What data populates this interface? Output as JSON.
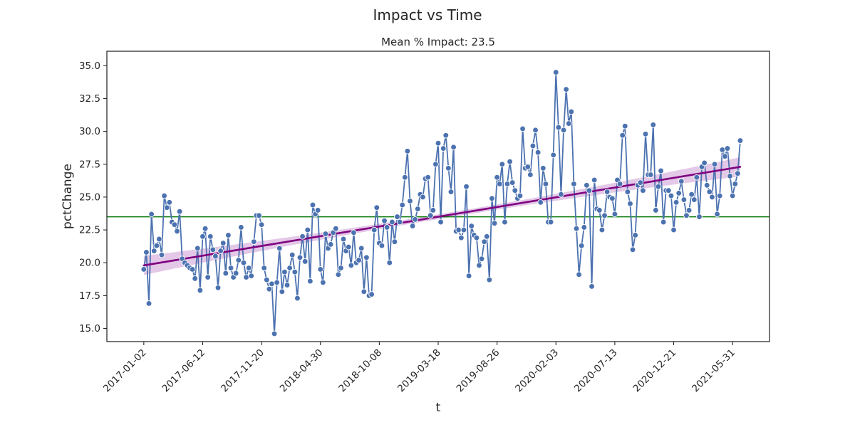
{
  "chart_data": {
    "type": "line",
    "title": "Impact vs Time",
    "subtitle": "Mean % Impact: 23.5",
    "xlabel": "t",
    "ylabel": "pctChange",
    "x_ticks": [
      "2017-01-02",
      "2017-06-12",
      "2017-11-20",
      "2018-04-30",
      "2018-10-08",
      "2019-03-18",
      "2019-08-26",
      "2020-02-03",
      "2020-07-13",
      "2020-12-21",
      "2021-05-31"
    ],
    "y_ticks": [
      "15.0",
      "17.5",
      "20.0",
      "22.5",
      "25.0",
      "27.5",
      "30.0",
      "32.5",
      "35.0"
    ],
    "xlim": [
      "2016-09-23",
      "2021-09-09"
    ],
    "ylim": [
      14.0,
      36.1
    ],
    "mean_line": 23.5,
    "trend": {
      "start": [
        "2017-01-02",
        19.8
      ],
      "end": [
        "2021-06-21",
        27.3
      ]
    },
    "series": [
      {
        "start_date": "2017-01-02",
        "interval_days": 7,
        "values": [
          19.5,
          20.8,
          16.9,
          23.7,
          20.9,
          21.3,
          21.8,
          20.6,
          25.1,
          24.2,
          24.6,
          23.1,
          22.9,
          22.4,
          23.9,
          20.3,
          20.0,
          19.8,
          19.6,
          19.5,
          18.8,
          21.1,
          17.9,
          22.0,
          22.6,
          18.9,
          22.0,
          21.0,
          20.5,
          18.1,
          20.9,
          21.5,
          19.2,
          22.1,
          19.6,
          18.9,
          19.2,
          20.2,
          22.7,
          20.0,
          18.9,
          19.6,
          19.0,
          21.6,
          23.6,
          23.6,
          22.9,
          19.6,
          18.7,
          18.0,
          18.4,
          14.6,
          18.5,
          21.1,
          17.8,
          19.3,
          18.3,
          19.6,
          20.6,
          19.3,
          17.3,
          20.4,
          22.0,
          20.1,
          22.5,
          18.6,
          24.4,
          23.7,
          24.0,
          19.5,
          18.5,
          22.2,
          21.1,
          21.4,
          22.3,
          22.6,
          19.1,
          19.6,
          21.8,
          20.9,
          21.2,
          19.8,
          22.3,
          20.0,
          20.2,
          21.1,
          17.8,
          20.4,
          17.5,
          17.6,
          22.5,
          24.2,
          21.5,
          21.3,
          23.2,
          22.7,
          20.0,
          23.1,
          21.6,
          23.5,
          23.1,
          24.4,
          26.5,
          28.5,
          24.7,
          22.8,
          23.3,
          24.1,
          25.2,
          25.0,
          26.4,
          26.5,
          23.6,
          24.0,
          27.5,
          29.1,
          23.1,
          28.7,
          29.7,
          27.2,
          25.4,
          28.8,
          22.4,
          22.5,
          21.9,
          22.5,
          25.8,
          19.0,
          22.8,
          22.1,
          21.9,
          19.8,
          20.3,
          21.6,
          22.0,
          18.7,
          24.9,
          23.0,
          26.5,
          26.0,
          27.5,
          23.1,
          26.0,
          27.7,
          26.1,
          25.5,
          24.9,
          25.1,
          30.2,
          27.2,
          27.3,
          26.7,
          28.9,
          30.1,
          28.4,
          24.6,
          27.2,
          26.0,
          23.1,
          23.1,
          28.2,
          34.5,
          30.3,
          25.2,
          30.1,
          33.2,
          30.6,
          31.5,
          26.0,
          22.6,
          19.1,
          21.3,
          22.7,
          25.9,
          25.5,
          18.2,
          26.3,
          24.1,
          24.0,
          22.5,
          23.6,
          25.4,
          25.0,
          24.9,
          23.7,
          26.3,
          26.0,
          29.7,
          30.4,
          25.4,
          24.5,
          21.0,
          22.1,
          25.9,
          26.1,
          25.5,
          29.8,
          26.7,
          26.7,
          30.5,
          24.0,
          25.8,
          27.0,
          23.1,
          25.5,
          25.5,
          25.1,
          22.5,
          24.6,
          25.3,
          26.2,
          24.8,
          23.6,
          24.0,
          25.2,
          24.8,
          26.5,
          23.5,
          27.3,
          27.6,
          25.9,
          25.4,
          25.0,
          27.5,
          23.7,
          25.1,
          28.6,
          28.1,
          28.7,
          26.6,
          25.1,
          26.0,
          26.8,
          29.3
        ]
      }
    ],
    "colors": {
      "series": "#4c72b0",
      "trend": "#800080",
      "trend_band": "#dab5df",
      "mean_line": "#0a7a0a",
      "axes": "#262626",
      "background": "#ffffff"
    },
    "grid": false,
    "legend": "none"
  }
}
